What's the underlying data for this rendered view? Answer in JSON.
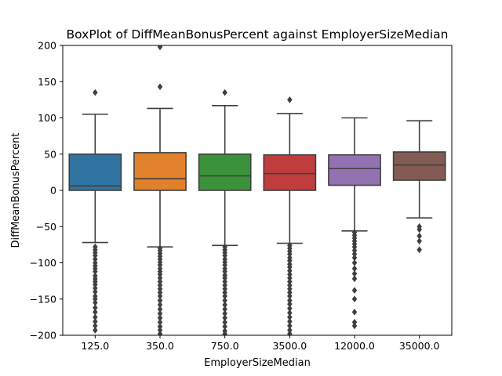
{
  "chart_data": {
    "type": "boxplot",
    "title": "BoxPlot of DiffMeanBonusPercent against EmployerSizeMedian",
    "xlabel": "EmployerSizeMedian",
    "ylabel": "DiffMeanBonusPercent",
    "ylim": [
      -200,
      200
    ],
    "yticks": [
      -200,
      -150,
      -100,
      -50,
      0,
      50,
      100,
      150,
      200
    ],
    "ytick_labels": [
      "−200",
      "−150",
      "−100",
      "−50",
      "0",
      "50",
      "100",
      "150",
      "200"
    ],
    "categories": [
      "125.0",
      "350.0",
      "750.0",
      "3500.0",
      "12000.0",
      "35000.0"
    ],
    "boxes": [
      {
        "category": "125.0",
        "color": "#3274a1",
        "whisker_low": -72,
        "q1": 0,
        "median": 6,
        "q3": 50,
        "whisker_high": 105,
        "outliers": [
          135,
          -78,
          -82,
          -86,
          -90,
          -95,
          -100,
          -104,
          -108,
          -112,
          -118,
          -122,
          -126,
          -130,
          -135,
          -140,
          -146,
          -150,
          -155,
          -162,
          -168,
          -175,
          -181,
          -187,
          -193
        ]
      },
      {
        "category": "350.0",
        "color": "#e1812c",
        "whisker_low": -78,
        "q1": 0,
        "median": 16,
        "q3": 52,
        "whisker_high": 113,
        "outliers": [
          198,
          143,
          -80,
          -83,
          -87,
          -91,
          -95,
          -99,
          -103,
          -108,
          -112,
          -116,
          -121,
          -126,
          -131,
          -136,
          -141,
          -146,
          -152,
          -158,
          -164,
          -170,
          -176,
          -182,
          -188,
          -193,
          -198
        ]
      },
      {
        "category": "750.0",
        "color": "#3a923a",
        "whisker_low": -76,
        "q1": 0,
        "median": 20,
        "q3": 50,
        "whisker_high": 117,
        "outliers": [
          135,
          -78,
          -82,
          -86,
          -90,
          -95,
          -99,
          -103,
          -108,
          -112,
          -117,
          -121,
          -126,
          -131,
          -136,
          -141,
          -146,
          -152,
          -158,
          -164,
          -170,
          -176,
          -182,
          -188,
          -194,
          -198
        ]
      },
      {
        "category": "3500.0",
        "color": "#c03d3e",
        "whisker_low": -73,
        "q1": 0,
        "median": 23,
        "q3": 49,
        "whisker_high": 106,
        "outliers": [
          125,
          -76,
          -80,
          -84,
          -88,
          -93,
          -97,
          -102,
          -106,
          -111,
          -116,
          -121,
          -126,
          -131,
          -136,
          -141,
          -146,
          -152,
          -157,
          -163,
          -169,
          -175,
          -181,
          -187,
          -193,
          -198
        ]
      },
      {
        "category": "12000.0",
        "color": "#9372b2",
        "whisker_low": -56,
        "q1": 7,
        "median": 30,
        "q3": 49,
        "whisker_high": 100,
        "outliers": [
          -58,
          -62,
          -66,
          -70,
          -74,
          -78,
          -83,
          -88,
          -93,
          -100,
          -108,
          -115,
          -122,
          -138,
          -150,
          -168,
          -182,
          -187
        ]
      },
      {
        "category": "35000.0",
        "color": "#845b53",
        "whisker_low": -38,
        "q1": 14,
        "median": 35,
        "q3": 53,
        "whisker_high": 96,
        "outliers": [
          -50,
          -54,
          -63,
          -70,
          -82
        ]
      }
    ]
  }
}
